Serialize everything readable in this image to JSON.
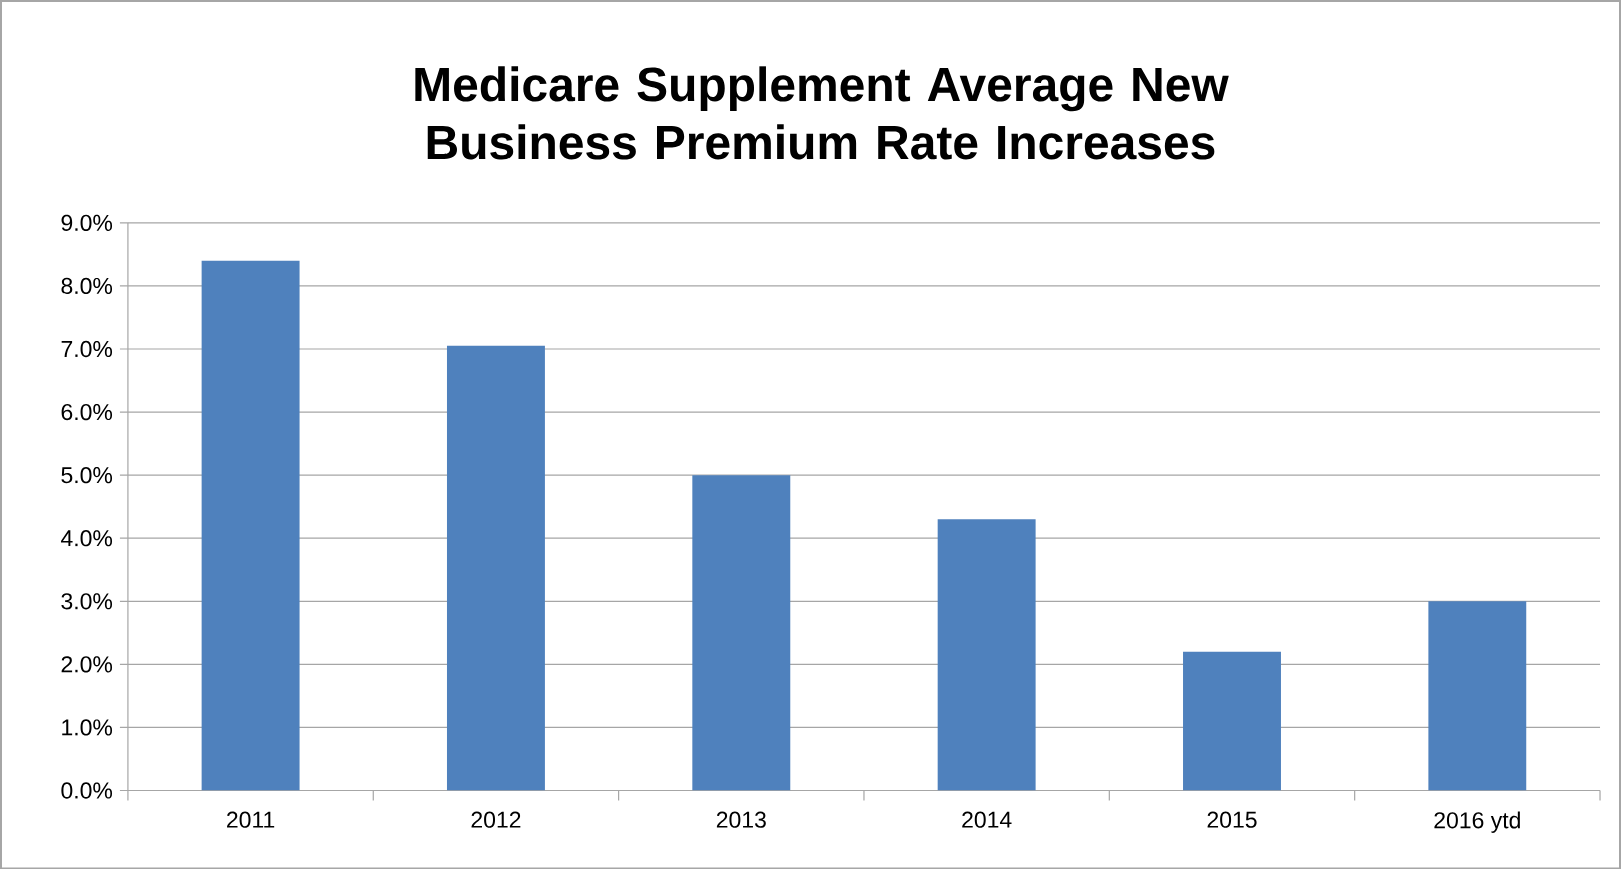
{
  "chart_data": {
    "type": "bar",
    "title": "Medicare Supplement Average New Business Premium Rate Increases",
    "categories": [
      "2011",
      "2012",
      "2013",
      "2014",
      "2015",
      "2016 ytd"
    ],
    "values": [
      8.4,
      7.05,
      5.0,
      4.3,
      2.2,
      3.0
    ],
    "color": "#4f81bd",
    "ylim": [
      0,
      9
    ],
    "yticks": [
      {
        "value": 0,
        "label": "0.0%"
      },
      {
        "value": 1,
        "label": "1.0%"
      },
      {
        "value": 2,
        "label": "2.0%"
      },
      {
        "value": 3,
        "label": "3.0%"
      },
      {
        "value": 4,
        "label": "4.0%"
      },
      {
        "value": 5,
        "label": "5.0%"
      },
      {
        "value": 6,
        "label": "6.0%"
      },
      {
        "value": 7,
        "label": "7.0%"
      },
      {
        "value": 8,
        "label": "8.0%"
      },
      {
        "value": 9,
        "label": "9.0%"
      }
    ],
    "grid": "y"
  }
}
